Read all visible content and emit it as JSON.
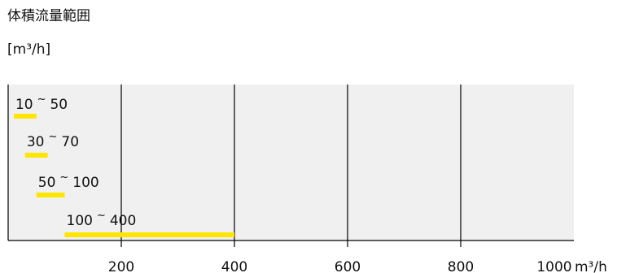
{
  "header": {
    "title": "体積流量範囲",
    "unit": "[m³/h]"
  },
  "colors": {
    "plot_background": "#f0f0f0",
    "bar": "#ffe600",
    "grid": "#000000",
    "text": "#111111"
  },
  "chart_data": {
    "type": "bar",
    "orientation": "horizontal",
    "title": "体積流量範囲",
    "unit_label": "[m³/h]",
    "xlabel": "m³/h",
    "xlim": [
      0,
      1000
    ],
    "xticks": [
      200,
      400,
      600,
      800,
      1000
    ],
    "grid": "vertical lines at ticks",
    "ranges": [
      {
        "low": 10,
        "high": 50,
        "label_low": "10",
        "label_sep": "~",
        "label_high": "50"
      },
      {
        "low": 30,
        "high": 70,
        "label_low": "30",
        "label_sep": "~",
        "label_high": "70"
      },
      {
        "low": 50,
        "high": 100,
        "label_low": "50",
        "label_sep": "~",
        "label_high": "100"
      },
      {
        "low": 100,
        "high": 400,
        "label_low": "100",
        "label_sep": "~",
        "label_high": "400"
      }
    ]
  }
}
